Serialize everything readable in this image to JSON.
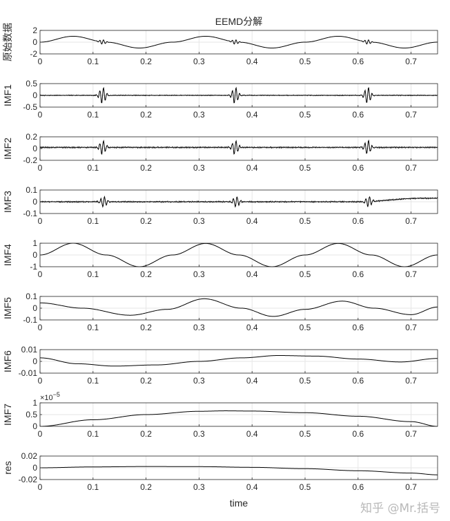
{
  "chart_data": {
    "type": "line",
    "title": "EEMD分解",
    "xlabel": "time",
    "xlim": [
      0,
      0.75
    ],
    "xticks": [
      "0",
      "0.1",
      "0.2",
      "0.3",
      "0.4",
      "0.5",
      "0.6",
      "0.7"
    ],
    "grid": true,
    "line_color": "#000000",
    "panels": [
      {
        "name": "原始数据",
        "ylim": [
          -2,
          2
        ],
        "yticks": [
          "-2",
          "0",
          "2"
        ],
        "x": [
          0,
          0.0625,
          0.125,
          0.1875,
          0.25,
          0.3125,
          0.375,
          0.4375,
          0.5,
          0.5625,
          0.625,
          0.6875,
          0.75
        ],
        "values": [
          0,
          1.0,
          0,
          -1.0,
          0,
          1.0,
          0,
          -1.0,
          0,
          1.0,
          0,
          -1.0,
          0
        ],
        "events": [
          {
            "x": 0.118,
            "amplitude": 0.4
          },
          {
            "x": 0.368,
            "amplitude": 0.4
          },
          {
            "x": 0.618,
            "amplitude": 0.4
          }
        ]
      },
      {
        "name": "IMF1",
        "ylim": [
          -0.5,
          0.5
        ],
        "yticks": [
          "-0.5",
          "0",
          "0.5"
        ],
        "x": [
          0,
          0.118,
          0.368,
          0.618,
          0.75
        ],
        "values": [
          0,
          0,
          0,
          0,
          0
        ],
        "noise": 0.02,
        "events": [
          {
            "x": 0.118,
            "amplitude": 0.35
          },
          {
            "x": 0.368,
            "amplitude": 0.35
          },
          {
            "x": 0.618,
            "amplitude": 0.35
          }
        ]
      },
      {
        "name": "IMF2",
        "ylim": [
          -0.2,
          0.2
        ],
        "yticks": [
          "-0.2",
          "0",
          "0.2"
        ],
        "x": [
          0,
          0.118,
          0.368,
          0.618,
          0.75
        ],
        "values": [
          0.02,
          0.02,
          0.02,
          0.02,
          0.02
        ],
        "noise": 0.012,
        "events": [
          {
            "x": 0.118,
            "amplitude": 0.12
          },
          {
            "x": 0.368,
            "amplitude": 0.12
          },
          {
            "x": 0.618,
            "amplitude": 0.12
          }
        ]
      },
      {
        "name": "IMF3",
        "ylim": [
          -0.1,
          0.1
        ],
        "yticks": [
          "-0.1",
          "0",
          "0.1"
        ],
        "x": [
          0,
          0.2,
          0.4,
          0.6,
          0.72,
          0.75
        ],
        "values": [
          0,
          0,
          0,
          0,
          0.03,
          0.03
        ],
        "noise": 0.006,
        "events": [
          {
            "x": 0.12,
            "amplitude": 0.045
          },
          {
            "x": 0.37,
            "amplitude": 0.045
          },
          {
            "x": 0.62,
            "amplitude": 0.045
          }
        ]
      },
      {
        "name": "IMF4",
        "ylim": [
          -1,
          1
        ],
        "yticks": [
          "-1",
          "0",
          "1"
        ],
        "x": [
          0,
          0.0625,
          0.125,
          0.1875,
          0.25,
          0.3125,
          0.375,
          0.4375,
          0.5,
          0.5625,
          0.625,
          0.6875,
          0.75
        ],
        "values": [
          0,
          1.0,
          0,
          -1.0,
          0,
          0.98,
          0,
          -1.0,
          0,
          0.98,
          0,
          -1.0,
          0
        ],
        "noise": 0,
        "events": []
      },
      {
        "name": "IMF5",
        "ylim": [
          -0.1,
          0.1
        ],
        "yticks": [
          "-0.1",
          "0",
          "0.1"
        ],
        "x": [
          0,
          0.08,
          0.17,
          0.24,
          0.31,
          0.38,
          0.44,
          0.5,
          0.57,
          0.63,
          0.7,
          0.75
        ],
        "values": [
          0.045,
          0.0,
          -0.06,
          -0.01,
          0.08,
          0.0,
          -0.07,
          -0.01,
          0.06,
          0.0,
          -0.055,
          0.01
        ],
        "noise": 0,
        "events": []
      },
      {
        "name": "IMF6",
        "ylim": [
          -0.01,
          0.01
        ],
        "yticks": [
          "-0.01",
          "0",
          "0.01"
        ],
        "x": [
          0,
          0.07,
          0.14,
          0.22,
          0.3,
          0.38,
          0.45,
          0.52,
          0.6,
          0.68,
          0.75
        ],
        "values": [
          0.003,
          -0.002,
          -0.004,
          -0.003,
          0.0,
          0.003,
          0.005,
          0.0045,
          0.002,
          -0.0005,
          0.0025
        ],
        "noise": 0,
        "events": []
      },
      {
        "name": "IMF7",
        "ylim": [
          0,
          1
        ],
        "yticks": [
          "0",
          "0.5",
          "1"
        ],
        "exponent": "×10^{-5}",
        "x": [
          0,
          0.1,
          0.2,
          0.3,
          0.35,
          0.4,
          0.5,
          0.6,
          0.7,
          0.75
        ],
        "values": [
          0,
          0.28,
          0.5,
          0.64,
          0.66,
          0.65,
          0.58,
          0.43,
          0.2,
          0
        ],
        "noise": 0,
        "events": []
      },
      {
        "name": "res",
        "ylim": [
          -0.02,
          0.02
        ],
        "yticks": [
          "-0.02",
          "0",
          "0.02"
        ],
        "x": [
          0,
          0.1,
          0.2,
          0.3,
          0.4,
          0.5,
          0.6,
          0.7,
          0.75
        ],
        "values": [
          0,
          0.0015,
          0.0022,
          0.002,
          0.0008,
          -0.0015,
          -0.005,
          -0.009,
          -0.012
        ],
        "noise": 0,
        "events": []
      }
    ]
  },
  "watermark": "知乎 @Mr.括号"
}
